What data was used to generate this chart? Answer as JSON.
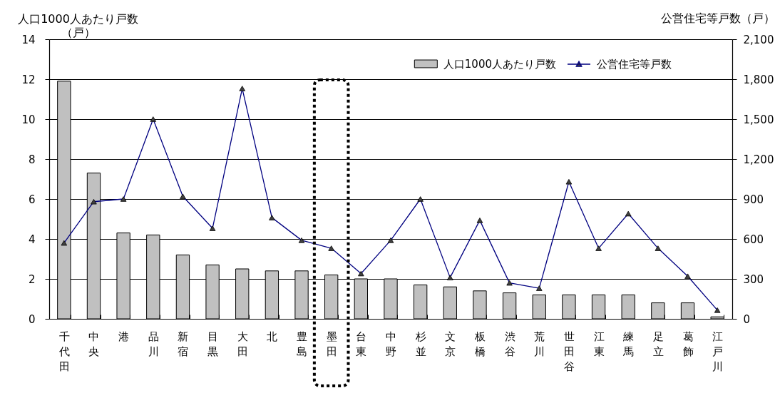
{
  "chart_data": {
    "type": "bar",
    "categories": [
      "千代田",
      "中央",
      "港",
      "品川",
      "新宿",
      "目黒",
      "大田",
      "北",
      "豊島",
      "墨田",
      "台東",
      "中野",
      "杉並",
      "文京",
      "板橋",
      "渋谷",
      "荒川",
      "世田谷",
      "江東",
      "練馬",
      "足立",
      "葛飾",
      "江戸川"
    ],
    "series": [
      {
        "name": "人口1000人あたり戸数",
        "color": "#c0c0c0",
        "values": [
          11.9,
          7.3,
          4.3,
          4.2,
          3.2,
          2.7,
          2.5,
          2.4,
          2.4,
          2.2,
          2.0,
          2.0,
          1.7,
          1.6,
          1.4,
          1.3,
          1.2,
          1.2,
          1.2,
          1.2,
          0.8,
          0.8,
          0.1
        ]
      },
      {
        "name": "公営住宅等戸数",
        "type": "line",
        "color": "#000080",
        "axis": "y2",
        "values": [
          570,
          880,
          900,
          1500,
          920,
          680,
          1730,
          760,
          590,
          530,
          340,
          590,
          900,
          310,
          740,
          270,
          230,
          1030,
          530,
          790,
          530,
          320,
          65
        ]
      }
    ],
    "ylabel": "人口1000人あたり戸数（戸）",
    "y2label": "公営住宅等戸数（戸）",
    "ylim": [
      0,
      14
    ],
    "yticks": [
      0,
      2,
      4,
      6,
      8,
      10,
      12,
      14
    ],
    "y2lim": [
      0,
      2100
    ],
    "y2ticks": [
      0,
      300,
      600,
      900,
      {
        "value": 1200,
        "label": "1,200"
      },
      {
        "value": 1500,
        "label": "1,500"
      },
      {
        "value": 1800,
        "label": "1,800"
      },
      {
        "value": 2100,
        "label": "2,100"
      }
    ],
    "grid": "y",
    "legend": "top right",
    "marker": "triangle"
  }
}
